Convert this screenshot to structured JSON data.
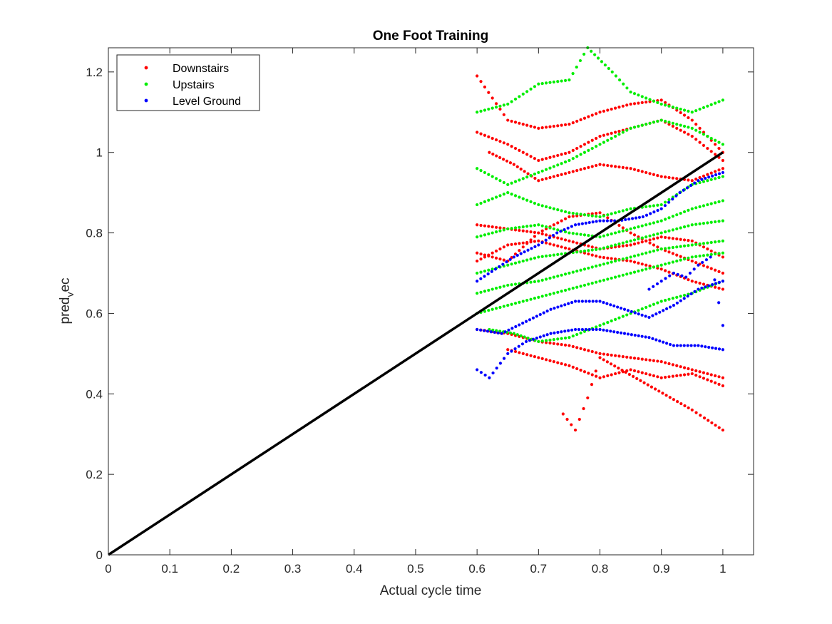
{
  "chart_data": {
    "type": "scatter",
    "title": "One Foot Training",
    "xlabel": "Actual cycle time",
    "ylabel_main": "pred",
    "ylabel_sub": "v",
    "ylabel_tail": "ec",
    "xlim": [
      0,
      1.05
    ],
    "ylim": [
      0,
      1.26
    ],
    "xticks": [
      0,
      0.1,
      0.2,
      0.3,
      0.4,
      0.5,
      0.6,
      0.7,
      0.8,
      0.9,
      1
    ],
    "xtick_labels": [
      "0",
      "0.1",
      "0.2",
      "0.3",
      "0.4",
      "0.5",
      "0.6",
      "0.7",
      "0.8",
      "0.9",
      "1"
    ],
    "yticks": [
      0,
      0.2,
      0.4,
      0.6,
      0.8,
      1,
      1.2
    ],
    "ytick_labels": [
      "0",
      "0.2",
      "0.4",
      "0.6",
      "0.8",
      "1",
      "1.2"
    ],
    "grid": false,
    "legend_position": "top-left",
    "reference_line": {
      "x": [
        0,
        1
      ],
      "y": [
        0,
        1
      ],
      "color": "#000000"
    },
    "series": [
      {
        "name": "Downstairs",
        "color": "#ff0000",
        "curves": [
          {
            "x": [
              0.6,
              0.65,
              0.7,
              0.75,
              0.8,
              0.85,
              0.9,
              0.95,
              1.0
            ],
            "y": [
              1.19,
              1.08,
              1.06,
              1.07,
              1.1,
              1.12,
              1.13,
              1.08,
              1.0
            ]
          },
          {
            "x": [
              0.6,
              0.65,
              0.7,
              0.75,
              0.8,
              0.85,
              0.9,
              0.95,
              1.0
            ],
            "y": [
              1.05,
              1.02,
              0.98,
              1.0,
              1.04,
              1.06,
              1.08,
              1.04,
              0.98
            ]
          },
          {
            "x": [
              0.62,
              0.66,
              0.7,
              0.75,
              0.8,
              0.85,
              0.9,
              0.95,
              1.0
            ],
            "y": [
              1.0,
              0.97,
              0.93,
              0.95,
              0.97,
              0.96,
              0.94,
              0.93,
              0.96
            ]
          },
          {
            "x": [
              0.6,
              0.65,
              0.7,
              0.75,
              0.8,
              0.85,
              0.9,
              0.95,
              1.0
            ],
            "y": [
              0.82,
              0.81,
              0.8,
              0.78,
              0.76,
              0.77,
              0.79,
              0.78,
              0.74
            ]
          },
          {
            "x": [
              0.6,
              0.65,
              0.7,
              0.75,
              0.8,
              0.85,
              0.9,
              0.95,
              1.0
            ],
            "y": [
              0.75,
              0.73,
              0.8,
              0.84,
              0.85,
              0.8,
              0.76,
              0.73,
              0.7
            ]
          },
          {
            "x": [
              0.6,
              0.65,
              0.7,
              0.75,
              0.8,
              0.85,
              0.9,
              0.95,
              1.0
            ],
            "y": [
              0.73,
              0.77,
              0.78,
              0.76,
              0.74,
              0.73,
              0.71,
              0.68,
              0.66
            ]
          },
          {
            "x": [
              0.6,
              0.65,
              0.7,
              0.75,
              0.8,
              0.85,
              0.9,
              0.95,
              1.0
            ],
            "y": [
              0.56,
              0.55,
              0.53,
              0.52,
              0.5,
              0.49,
              0.48,
              0.46,
              0.44
            ]
          },
          {
            "x": [
              0.65,
              0.7,
              0.75,
              0.8,
              0.85,
              0.9,
              0.95,
              1.0
            ],
            "y": [
              0.51,
              0.49,
              0.47,
              0.44,
              0.46,
              0.44,
              0.45,
              0.42
            ]
          },
          {
            "x": [
              0.74,
              0.76,
              0.78,
              0.8,
              0.95,
              0.97,
              1.0
            ],
            "y": [
              0.35,
              0.31,
              0.39,
              0.49,
              0.36,
              0.34,
              0.31
            ]
          }
        ]
      },
      {
        "name": "Upstairs",
        "color": "#00ee00",
        "curves": [
          {
            "x": [
              0.6,
              0.65,
              0.7,
              0.75,
              0.78,
              0.82,
              0.85,
              0.9,
              0.95,
              1.0
            ],
            "y": [
              1.1,
              1.12,
              1.17,
              1.18,
              1.26,
              1.2,
              1.15,
              1.12,
              1.1,
              1.13
            ]
          },
          {
            "x": [
              0.6,
              0.65,
              0.7,
              0.75,
              0.8,
              0.85,
              0.9,
              0.95,
              1.0
            ],
            "y": [
              0.96,
              0.92,
              0.95,
              0.98,
              1.02,
              1.06,
              1.08,
              1.06,
              1.02
            ]
          },
          {
            "x": [
              0.6,
              0.65,
              0.7,
              0.75,
              0.8,
              0.85,
              0.9,
              0.95,
              1.0
            ],
            "y": [
              0.87,
              0.9,
              0.87,
              0.85,
              0.84,
              0.86,
              0.87,
              0.92,
              0.94
            ]
          },
          {
            "x": [
              0.6,
              0.65,
              0.7,
              0.75,
              0.8,
              0.85,
              0.9,
              0.95,
              1.0
            ],
            "y": [
              0.79,
              0.81,
              0.82,
              0.8,
              0.79,
              0.81,
              0.83,
              0.86,
              0.88
            ]
          },
          {
            "x": [
              0.6,
              0.65,
              0.7,
              0.75,
              0.8,
              0.85,
              0.9,
              0.95,
              1.0
            ],
            "y": [
              0.7,
              0.72,
              0.74,
              0.75,
              0.76,
              0.78,
              0.8,
              0.82,
              0.83
            ]
          },
          {
            "x": [
              0.6,
              0.65,
              0.7,
              0.75,
              0.8,
              0.85,
              0.9,
              0.95,
              1.0
            ],
            "y": [
              0.65,
              0.67,
              0.68,
              0.7,
              0.72,
              0.74,
              0.76,
              0.77,
              0.78
            ]
          },
          {
            "x": [
              0.6,
              0.65,
              0.7,
              0.75,
              0.8,
              0.85,
              0.9,
              0.95,
              1.0
            ],
            "y": [
              0.6,
              0.62,
              0.64,
              0.66,
              0.68,
              0.7,
              0.72,
              0.74,
              0.75
            ]
          },
          {
            "x": [
              0.62,
              0.66,
              0.7,
              0.75,
              0.8,
              0.85,
              0.9,
              0.95,
              1.0
            ],
            "y": [
              0.56,
              0.55,
              0.53,
              0.54,
              0.57,
              0.6,
              0.63,
              0.65,
              0.68
            ]
          }
        ]
      },
      {
        "name": "Level Ground",
        "color": "#0000ff",
        "curves": [
          {
            "x": [
              0.6,
              0.63,
              0.66,
              0.7,
              0.73,
              0.76,
              0.8,
              0.83,
              0.87,
              0.9,
              0.93,
              0.96,
              1.0
            ],
            "y": [
              0.68,
              0.71,
              0.74,
              0.77,
              0.8,
              0.82,
              0.83,
              0.83,
              0.84,
              0.86,
              0.9,
              0.93,
              0.95
            ]
          },
          {
            "x": [
              0.6,
              0.64,
              0.68,
              0.72,
              0.76,
              0.8,
              0.84,
              0.88,
              0.92,
              0.96,
              1.0
            ],
            "y": [
              0.56,
              0.55,
              0.58,
              0.61,
              0.63,
              0.63,
              0.61,
              0.59,
              0.62,
              0.66,
              0.68
            ]
          },
          {
            "x": [
              0.6,
              0.62,
              0.65,
              0.68,
              0.72,
              0.76,
              0.8,
              0.84,
              0.88,
              0.92,
              0.96,
              1.0
            ],
            "y": [
              0.46,
              0.44,
              0.5,
              0.53,
              0.55,
              0.56,
              0.56,
              0.55,
              0.54,
              0.52,
              0.52,
              0.51
            ]
          },
          {
            "x": [
              0.88,
              0.9,
              0.92,
              0.94,
              0.96,
              0.98,
              1.0
            ],
            "y": [
              0.66,
              0.68,
              0.7,
              0.69,
              0.72,
              0.74,
              0.57
            ]
          }
        ]
      }
    ]
  }
}
